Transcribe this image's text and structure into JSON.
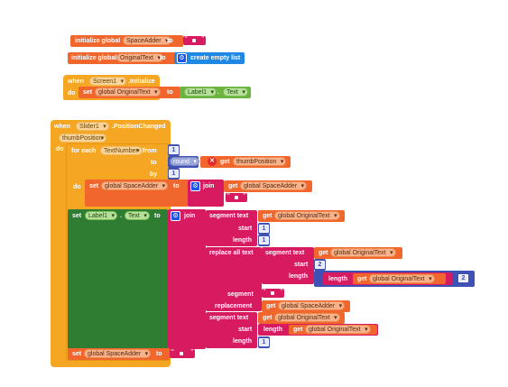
{
  "blocks": {
    "init1": {
      "label": "initialize global",
      "var": "SpaceAdder",
      "to": "to"
    },
    "init2": {
      "label": "initialize global",
      "var": "OriginalText",
      "to": "to",
      "value": "create empty list"
    },
    "screen_event": {
      "when": "when",
      "component": "Screen1",
      "event": ".Initialize",
      "do": "do",
      "set": "set",
      "target": "global OriginalText",
      "to": "to",
      "comp": "Label1",
      "prop": "Text"
    },
    "slider_event": {
      "when": "when",
      "component": "Slider1",
      "event": ".PositionChanged",
      "param": "thumbPosition",
      "do": "do"
    },
    "foreach": {
      "label": "for each",
      "var": "TextNumber",
      "from": "from",
      "to": "to",
      "by": "by",
      "from_val": "1",
      "by_val": "1",
      "round": "round",
      "get": "get",
      "get_var": "thumbPosition"
    },
    "inner_do": "do",
    "set_space": {
      "set": "set",
      "target": "global SpaceAdder",
      "to": "to",
      "join": "join",
      "get": "get",
      "get_var": "global SpaceAdder"
    },
    "set_label": {
      "set": "set",
      "comp": "Label1",
      "prop": "Text",
      "to": "to",
      "join": "join",
      "segment_text": "segment  text",
      "get": "get",
      "get_var": "global OriginalText",
      "start": "start",
      "start_val": "1",
      "length": "length",
      "length_val": "1",
      "replace_all": "replace all  text",
      "segment_text2": "segment  text",
      "get2_var": "global OriginalText",
      "start2": "start",
      "start2_val": "2",
      "length2": "length",
      "length_fn": "length",
      "get3_var": "global OriginalText",
      "minus": "-",
      "minus_val": "2",
      "segment": "segment",
      "replacement": "replacement",
      "get4_var": "global SpaceAdder",
      "segment_text3": "segment  text",
      "get5_var": "global OriginalText",
      "start3": "start",
      "start3_val": "1",
      "length3": "length",
      "length_fn3": "length",
      "get6_var": "global OriginalText",
      "length4": "length",
      "length4_val": "1"
    },
    "set_final": {
      "set": "set",
      "target": "global SpaceAdder",
      "to": "to"
    }
  },
  "colors": {
    "variable": "#f0662d",
    "event": "#f5a623",
    "control": "#f5a623",
    "text": "#d81b60",
    "math": "#3f51b5",
    "list": "#1e88e5",
    "component": "#6bb440",
    "label_set": "#2e7d32"
  }
}
